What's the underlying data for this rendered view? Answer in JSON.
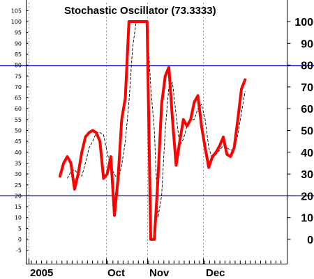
{
  "chart_data": {
    "type": "line",
    "title": "Stochastic Oscillator (73.3333)",
    "left_axis_ticks": [
      "-5",
      "0",
      "5",
      "10",
      "15",
      "20",
      "25",
      "30",
      "35",
      "40",
      "45",
      "50",
      "55",
      "60",
      "65",
      "70",
      "75",
      "80",
      "85",
      "90",
      "95",
      "100",
      "105"
    ],
    "right_axis_ticks": [
      "0",
      "10",
      "20",
      "30",
      "40",
      "50",
      "60",
      "70",
      "80",
      "90",
      "100"
    ],
    "x_labels": [
      "2005",
      "Oct",
      "Nov",
      "Dec"
    ],
    "ylim": [
      -8,
      107
    ],
    "reference_lines": [
      80,
      20
    ],
    "grid": "vertical dashed at month starts",
    "colors": {
      "k_line": "#ff0000",
      "d_line": "#000000",
      "reference": "#0000b0",
      "grid": "#9a9a9a"
    },
    "series": [
      {
        "style": "thick",
        "values": [
          29,
          35,
          38,
          35,
          23,
          30,
          40,
          47,
          49,
          50,
          49,
          45,
          28,
          30,
          38,
          11,
          28,
          55,
          65,
          100,
          100,
          100,
          100,
          100,
          100,
          0,
          0,
          28,
          62,
          75,
          79,
          55,
          34,
          45,
          55,
          52,
          55,
          63,
          66,
          52,
          42,
          33,
          38,
          40,
          43,
          47,
          39,
          38,
          42,
          55,
          69,
          73.3
        ]
      },
      {
        "style": "thin dashed",
        "values": [
          null,
          null,
          28,
          31,
          32,
          30,
          29,
          35,
          42,
          45,
          49,
          49,
          48,
          40,
          33,
          30,
          27,
          34,
          45,
          63,
          88,
          100,
          100,
          100,
          100,
          70,
          50,
          10,
          20,
          50,
          70,
          72,
          57,
          43,
          46,
          52,
          55,
          55,
          60,
          62,
          55,
          42,
          37,
          39,
          41,
          43,
          42,
          41,
          41,
          48,
          58,
          68
        ]
      }
    ]
  }
}
